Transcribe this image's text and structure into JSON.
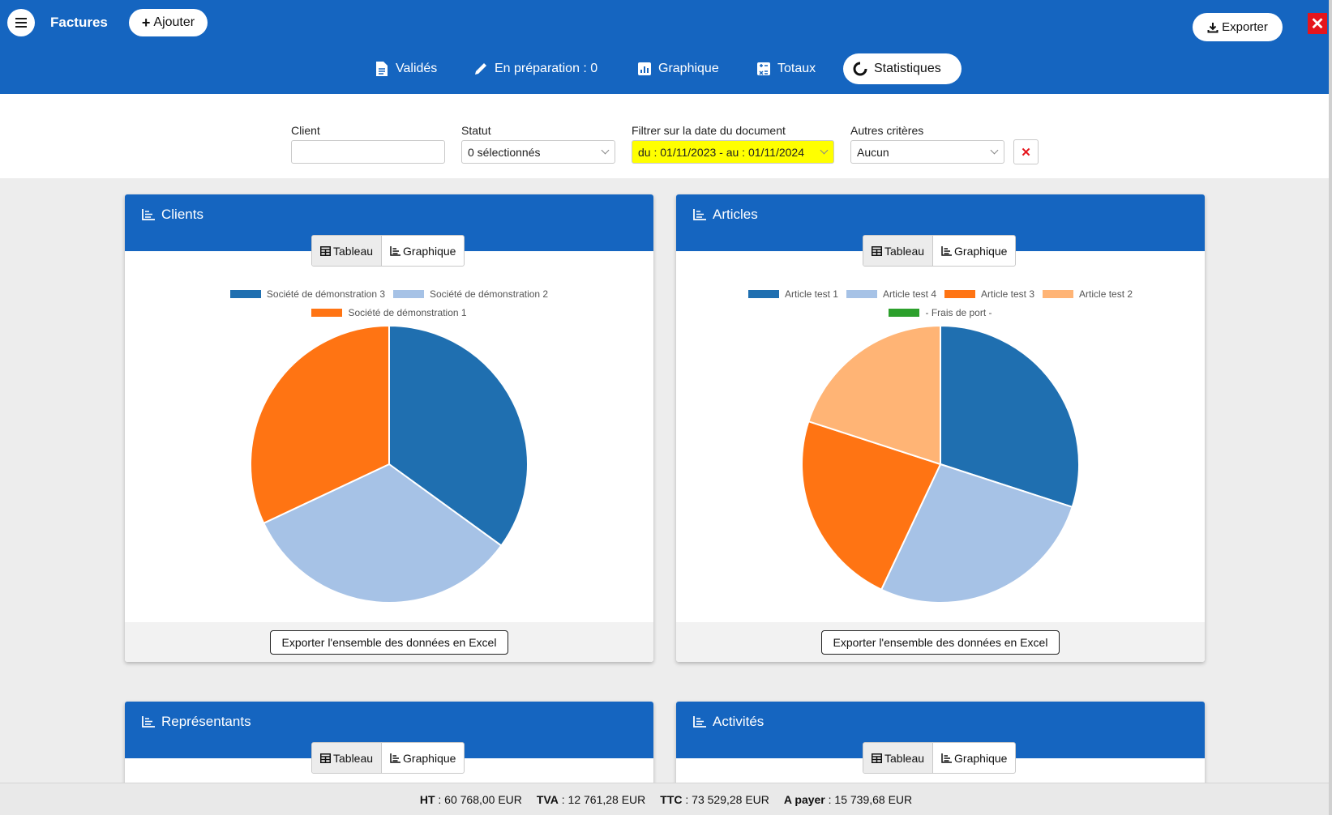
{
  "header": {
    "title": "Factures",
    "add_label": "Ajouter",
    "export_label": "Exporter",
    "close_label": "✕",
    "brand_color": "#1565c0"
  },
  "tabs": [
    {
      "label": "Validés",
      "icon": "document-icon"
    },
    {
      "label": "En préparation : 0",
      "icon": "pencil-icon"
    },
    {
      "label": "Graphique",
      "icon": "bar-chart-icon"
    },
    {
      "label": "Totaux",
      "icon": "calculator-icon"
    },
    {
      "label": "Statistiques",
      "icon": "circle-notch-icon",
      "active": true
    }
  ],
  "filters": {
    "client_label": "Client",
    "client_value": "",
    "status_label": "Statut",
    "status_value": "0 sélectionnés",
    "date_label": "Filtrer sur la date du document",
    "date_value": "du : 01/11/2023 - au : 01/11/2024",
    "other_label": "Autres critères",
    "other_value": "Aucun"
  },
  "cards": {
    "clients": {
      "title": "Clients",
      "toggle_table": "Tableau",
      "toggle_chart": "Graphique",
      "excel_label": "Exporter l'ensemble des données en Excel"
    },
    "articles": {
      "title": "Articles",
      "toggle_table": "Tableau",
      "toggle_chart": "Graphique",
      "excel_label": "Exporter l'ensemble des données en Excel"
    },
    "representants": {
      "title": "Représentants",
      "toggle_table": "Tableau",
      "toggle_chart": "Graphique"
    },
    "activites": {
      "title": "Activités",
      "toggle_table": "Tableau",
      "toggle_chart": "Graphique"
    }
  },
  "chart_data": [
    {
      "type": "pie",
      "title": "Clients",
      "categories": [
        "Société de démonstration 3",
        "Société de démonstration 2",
        "Société de démonstration 1"
      ],
      "values": [
        35,
        33,
        32
      ],
      "colors": [
        "#1f6fb0",
        "#a6c2e6",
        "#ff7413"
      ]
    },
    {
      "type": "pie",
      "title": "Articles",
      "categories": [
        "Article test 1",
        "Article test 4",
        "Article test 3",
        "Article test 2",
        "- Frais de port -"
      ],
      "values": [
        30,
        27,
        23,
        20,
        0
      ],
      "colors": [
        "#1f6fb0",
        "#a6c2e6",
        "#ff7413",
        "#ffb475",
        "#2ca02c"
      ]
    }
  ],
  "totals": {
    "ht_label": "HT",
    "ht_value": "60 768,00 EUR",
    "tva_label": "TVA",
    "tva_value": "12 761,28 EUR",
    "ttc_label": "TTC",
    "ttc_value": "73 529,28 EUR",
    "pay_label": "A payer",
    "pay_value": "15 739,68 EUR"
  }
}
